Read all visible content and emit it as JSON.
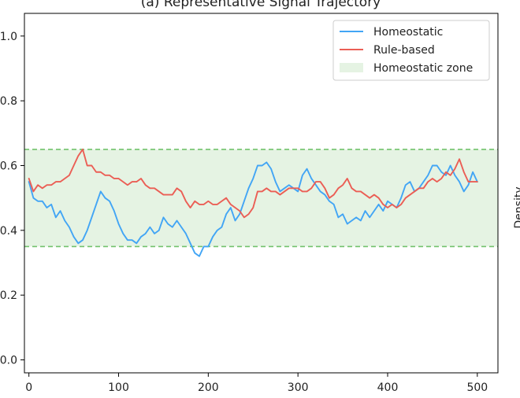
{
  "chart_data": {
    "type": "line",
    "title": "(a) Representative Signal Trajectory",
    "side_label": "Density",
    "xlabel": "",
    "ylabel": "",
    "xlim": [
      -5,
      523
    ],
    "ylim": [
      -0.04,
      1.07
    ],
    "x_ticks": [
      0,
      100,
      200,
      300,
      400,
      500
    ],
    "y_ticks": [
      0.0,
      0.2,
      0.4,
      0.6,
      0.8,
      1.0
    ],
    "y_tick_labels": [
      "0.0",
      "0.2",
      "0.4",
      "0.6",
      "0.8",
      "1.0"
    ],
    "band": {
      "name": "Homeostatic zone",
      "low": 0.35,
      "high": 0.65,
      "color": "#e5f3e3",
      "line_color": "#72c26c"
    },
    "legend": {
      "position": "top-right"
    },
    "series": [
      {
        "name": "Homeostatic",
        "color": "#42a5f5",
        "x": [
          0,
          5,
          10,
          15,
          20,
          25,
          30,
          35,
          40,
          45,
          50,
          55,
          60,
          65,
          70,
          75,
          80,
          85,
          90,
          95,
          100,
          105,
          110,
          115,
          120,
          125,
          130,
          135,
          140,
          145,
          150,
          155,
          160,
          165,
          170,
          175,
          180,
          185,
          190,
          195,
          200,
          205,
          210,
          215,
          220,
          225,
          230,
          235,
          240,
          245,
          250,
          255,
          260,
          265,
          270,
          275,
          280,
          285,
          290,
          295,
          300,
          305,
          310,
          315,
          320,
          325,
          330,
          335,
          340,
          345,
          350,
          355,
          360,
          365,
          370,
          375,
          380,
          385,
          390,
          395,
          400,
          405,
          410,
          415,
          420,
          425,
          430,
          435,
          440,
          445,
          450,
          455,
          460,
          465,
          470,
          475,
          480,
          485,
          490,
          495,
          500
        ],
        "y": [
          0.55,
          0.5,
          0.49,
          0.49,
          0.47,
          0.48,
          0.44,
          0.46,
          0.43,
          0.41,
          0.38,
          0.36,
          0.37,
          0.4,
          0.44,
          0.48,
          0.52,
          0.5,
          0.49,
          0.46,
          0.42,
          0.39,
          0.37,
          0.37,
          0.36,
          0.38,
          0.39,
          0.41,
          0.39,
          0.4,
          0.44,
          0.42,
          0.41,
          0.43,
          0.41,
          0.39,
          0.36,
          0.33,
          0.32,
          0.35,
          0.35,
          0.38,
          0.4,
          0.41,
          0.45,
          0.47,
          0.43,
          0.45,
          0.49,
          0.53,
          0.56,
          0.6,
          0.6,
          0.61,
          0.59,
          0.55,
          0.52,
          0.53,
          0.54,
          0.53,
          0.52,
          0.57,
          0.59,
          0.56,
          0.54,
          0.52,
          0.51,
          0.49,
          0.48,
          0.44,
          0.45,
          0.42,
          0.43,
          0.44,
          0.43,
          0.46,
          0.44,
          0.46,
          0.48,
          0.46,
          0.49,
          0.48,
          0.47,
          0.5,
          0.54,
          0.55,
          0.52,
          0.53,
          0.55,
          0.57,
          0.6,
          0.6,
          0.58,
          0.57,
          0.6,
          0.57,
          0.55,
          0.52,
          0.54,
          0.58,
          0.55
        ]
      },
      {
        "name": "Rule-based",
        "color": "#eb5e55",
        "x": [
          0,
          5,
          10,
          15,
          20,
          25,
          30,
          35,
          40,
          45,
          50,
          55,
          60,
          65,
          70,
          75,
          80,
          85,
          90,
          95,
          100,
          105,
          110,
          115,
          120,
          125,
          130,
          135,
          140,
          145,
          150,
          155,
          160,
          165,
          170,
          175,
          180,
          185,
          190,
          195,
          200,
          205,
          210,
          215,
          220,
          225,
          230,
          235,
          240,
          245,
          250,
          255,
          260,
          265,
          270,
          275,
          280,
          285,
          290,
          295,
          300,
          305,
          310,
          315,
          320,
          325,
          330,
          335,
          340,
          345,
          350,
          355,
          360,
          365,
          370,
          375,
          380,
          385,
          390,
          395,
          400,
          405,
          410,
          415,
          420,
          425,
          430,
          435,
          440,
          445,
          450,
          455,
          460,
          465,
          470,
          475,
          480,
          485,
          490,
          495,
          500
        ],
        "y": [
          0.56,
          0.52,
          0.54,
          0.53,
          0.54,
          0.54,
          0.55,
          0.55,
          0.56,
          0.57,
          0.6,
          0.63,
          0.65,
          0.6,
          0.6,
          0.58,
          0.58,
          0.57,
          0.57,
          0.56,
          0.56,
          0.55,
          0.54,
          0.55,
          0.55,
          0.56,
          0.54,
          0.53,
          0.53,
          0.52,
          0.51,
          0.51,
          0.51,
          0.53,
          0.52,
          0.49,
          0.47,
          0.49,
          0.48,
          0.48,
          0.49,
          0.48,
          0.48,
          0.49,
          0.5,
          0.48,
          0.47,
          0.46,
          0.44,
          0.45,
          0.47,
          0.52,
          0.52,
          0.53,
          0.52,
          0.52,
          0.51,
          0.52,
          0.53,
          0.53,
          0.53,
          0.52,
          0.52,
          0.53,
          0.55,
          0.55,
          0.53,
          0.5,
          0.51,
          0.53,
          0.54,
          0.56,
          0.53,
          0.52,
          0.52,
          0.51,
          0.5,
          0.51,
          0.5,
          0.48,
          0.47,
          0.48,
          0.47,
          0.48,
          0.5,
          0.51,
          0.52,
          0.53,
          0.53,
          0.55,
          0.56,
          0.55,
          0.56,
          0.58,
          0.57,
          0.59,
          0.62,
          0.58,
          0.55,
          0.55,
          0.55
        ]
      }
    ]
  }
}
